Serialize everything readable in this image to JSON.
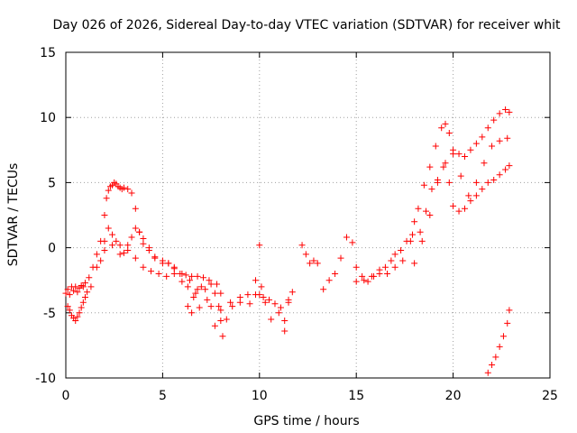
{
  "chart_data": {
    "type": "scatter",
    "title": "Day 026 of 2026, Sidereal Day-to-day VTEC variation (SDTVAR) for receiver whit",
    "xlabel": "GPS time / hours",
    "ylabel": "SDTVAR / TECUs",
    "xlim": [
      0,
      25
    ],
    "ylim": [
      -10,
      15
    ],
    "x_ticks": [
      0,
      5,
      10,
      15,
      20,
      25
    ],
    "y_ticks": [
      -10,
      -5,
      0,
      5,
      10,
      15
    ],
    "x_tick_labels": [
      "0",
      "5",
      "10",
      "15",
      "20",
      "25"
    ],
    "y_tick_labels": [
      "-10",
      "-5",
      "0",
      "5",
      "10",
      "15"
    ],
    "grid": true,
    "marker": "+",
    "series_color": "#ff0000",
    "series": [
      {
        "name": "trace-main",
        "x": [
          0.0,
          0.1,
          0.2,
          0.3,
          0.4,
          0.5,
          0.6,
          0.7,
          0.8,
          0.9,
          1.0,
          1.2,
          1.4,
          1.6,
          1.8,
          2.0,
          2.1,
          2.2,
          2.3,
          2.4,
          2.5,
          2.6,
          2.7,
          2.8,
          2.9,
          3.0,
          3.2,
          3.4,
          3.6,
          3.8,
          4.0,
          4.3,
          4.6,
          5.0,
          5.3,
          5.6,
          5.9,
          6.2,
          6.5,
          6.8,
          7.1,
          7.4,
          7.7,
          7.9,
          8.0,
          8.1,
          8.3,
          8.6,
          9.0,
          9.4,
          9.8,
          10.0,
          10.2,
          10.5,
          10.8,
          11.1,
          11.3,
          11.5
        ],
        "y": [
          -3.5,
          -3.2,
          -3.6,
          -3.0,
          -3.3,
          -3.0,
          -3.4,
          -3.1,
          -2.9,
          -3.0,
          -2.7,
          -2.3,
          -1.5,
          -0.5,
          0.5,
          2.5,
          3.8,
          4.4,
          4.7,
          4.8,
          5.0,
          4.9,
          4.7,
          4.6,
          4.5,
          4.6,
          4.5,
          4.2,
          3.0,
          1.2,
          0.3,
          0.0,
          -0.8,
          -1.2,
          -1.2,
          -1.6,
          -2.0,
          -2.1,
          -2.2,
          -2.2,
          -2.3,
          -2.5,
          -3.5,
          -4.5,
          -5.6,
          -6.8,
          -5.5,
          -4.5,
          -4.2,
          -3.6,
          -3.6,
          -3.6,
          -3.8,
          -4.0,
          -4.3,
          -4.6,
          -5.6,
          -4.2
        ]
      },
      {
        "name": "trace-early-dip",
        "x": [
          0.1,
          0.2,
          0.3,
          0.4,
          0.5,
          0.6,
          0.7,
          0.8,
          0.9,
          1.0,
          1.1,
          1.3
        ],
        "y": [
          -4.5,
          -4.8,
          -5.2,
          -5.4,
          -5.6,
          -5.3,
          -5.0,
          -4.6,
          -4.2,
          -3.8,
          -3.4,
          -3.0
        ]
      },
      {
        "name": "trace-secondary",
        "x": [
          1.6,
          1.8,
          2.0,
          2.2,
          2.4,
          2.6,
          2.8,
          3.0,
          3.2,
          3.4,
          3.6,
          3.8,
          4.0,
          4.3,
          4.6,
          5.0,
          5.3,
          5.6,
          6.0,
          6.4,
          6.8
        ],
        "y": [
          -1.5,
          -1.0,
          0.5,
          1.5,
          1.0,
          0.5,
          0.2,
          -0.4,
          0.2,
          0.8,
          1.5,
          1.2,
          0.7,
          -0.2,
          -0.7,
          -1.0,
          -1.2,
          -1.5,
          -2.0,
          -2.5,
          -3.2
        ]
      },
      {
        "name": "trace-lower-band",
        "x": [
          2.0,
          2.4,
          2.8,
          3.2,
          3.6,
          4.0,
          4.4,
          4.8,
          5.2,
          5.6,
          6.0,
          6.3,
          6.6,
          6.9,
          7.2,
          7.5,
          7.8,
          8.0
        ],
        "y": [
          -0.2,
          0.2,
          -0.5,
          -0.2,
          -0.8,
          -1.5,
          -1.8,
          -2.0,
          -2.2,
          -2.0,
          -2.6,
          -3.0,
          -3.8,
          -4.6,
          -3.2,
          -2.8,
          -2.8,
          -3.5
        ]
      },
      {
        "name": "trace-spikes",
        "x": [
          6.3,
          6.5,
          6.7,
          7.0,
          7.3,
          7.5,
          7.7,
          8.0,
          8.5,
          9.0,
          9.5,
          9.8,
          10.0,
          10.1,
          10.3,
          10.6,
          11.0,
          11.3,
          11.5,
          11.7
        ],
        "y": [
          -4.5,
          -5.0,
          -3.5,
          -3.0,
          -4.0,
          -4.5,
          -6.0,
          -4.8,
          -4.2,
          -3.8,
          -4.3,
          -2.5,
          0.2,
          -3.0,
          -4.2,
          -5.5,
          -5.0,
          -6.4,
          -4.0,
          -3.4
        ]
      },
      {
        "name": "trace-evening",
        "x": [
          12.2,
          12.4,
          12.6,
          12.8,
          13.0,
          13.3,
          13.6,
          13.9,
          14.2,
          14.5,
          14.8,
          15.0,
          15.3,
          15.6,
          15.9,
          16.2,
          16.5,
          16.8,
          17.0,
          17.3,
          17.6,
          17.9,
          18.2,
          18.5,
          18.8,
          19.1,
          19.4,
          19.6,
          19.8,
          20.0,
          20.3,
          20.6,
          20.9,
          21.2,
          21.5,
          21.8,
          22.1,
          22.4,
          22.7,
          22.9
        ],
        "y": [
          0.2,
          -0.5,
          -1.2,
          -1.0,
          -1.2,
          -3.2,
          -2.5,
          -2.0,
          -0.8,
          0.8,
          0.4,
          -1.5,
          -2.2,
          -2.6,
          -2.2,
          -1.7,
          -1.5,
          -1.0,
          -0.5,
          -0.2,
          0.5,
          1.0,
          3.0,
          4.8,
          6.2,
          7.8,
          9.2,
          9.5,
          8.8,
          7.5,
          7.2,
          7.0,
          7.5,
          8.0,
          8.5,
          9.2,
          9.8,
          10.3,
          10.6,
          10.4
        ]
      },
      {
        "name": "trace-evening-low",
        "x": [
          15.0,
          15.4,
          15.8,
          16.2,
          16.6,
          17.0,
          17.4,
          17.8,
          18.0,
          18.3,
          18.6,
          18.9,
          19.2,
          19.5,
          19.8,
          20.0,
          20.3,
          20.6,
          20.9,
          21.2,
          21.5,
          21.8,
          22.1,
          22.4,
          22.7,
          22.9
        ],
        "y": [
          -2.6,
          -2.5,
          -2.2,
          -2.0,
          -2.0,
          -1.5,
          -1.0,
          0.5,
          2.0,
          1.2,
          2.8,
          4.5,
          5.2,
          6.2,
          5.0,
          3.2,
          2.8,
          3.0,
          3.6,
          4.0,
          4.5,
          5.0,
          5.2,
          5.6,
          6.0,
          6.3
        ]
      },
      {
        "name": "trace-evening-mid",
        "x": [
          18.0,
          18.4,
          18.8,
          19.2,
          19.6,
          20.0,
          20.4,
          20.8,
          21.2,
          21.6,
          22.0,
          22.4,
          22.8
        ],
        "y": [
          -1.2,
          0.5,
          2.5,
          5.0,
          6.5,
          7.2,
          5.5,
          4.0,
          5.0,
          6.5,
          7.8,
          8.2,
          8.4
        ]
      },
      {
        "name": "trace-late-drop",
        "x": [
          21.8,
          22.0,
          22.2,
          22.4,
          22.6,
          22.8,
          22.9
        ],
        "y": [
          -9.6,
          -9.0,
          -8.4,
          -7.6,
          -6.8,
          -5.8,
          -4.8
        ]
      }
    ]
  }
}
